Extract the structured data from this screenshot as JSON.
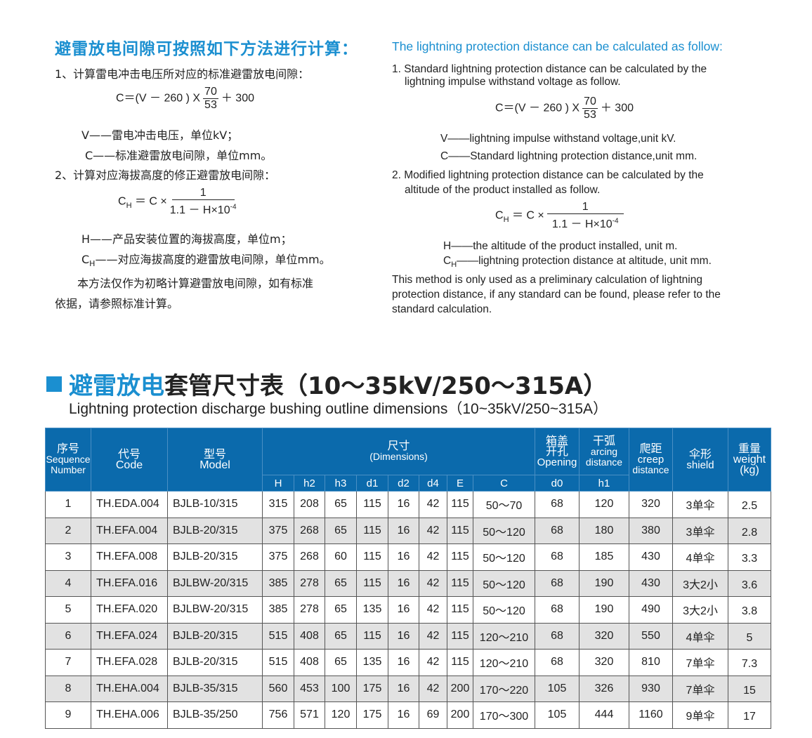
{
  "cn": {
    "title": "避雷放电间隙可按照如下方法进行计算：",
    "step1": "1、计算雷电冲击电压所对应的标准避雷放电间隙：",
    "f1": {
      "lhs": "C＝(V  － 260 ) X",
      "num": "70",
      "den": "53",
      "tail": "＋ 300"
    },
    "v_def": "V——雷电冲击电压，单位kV；",
    "c_def": "C——标准避雷放电间隙，单位mm。",
    "step2": "2、计算对应海拔高度的修正避雷放电间隙：",
    "f2": {
      "c": "C",
      "sub": "H",
      "mid": "＝ C ×",
      "num": "1",
      "den": "1.1 － H×10",
      "exp": "-4"
    },
    "h_def": "H——产品安装位置的海拔高度，单位m；",
    "ch_def": "——对应海拔高度的避雷放电间隙，单位mm。",
    "note1": "本方法仅作为初略计算避雷放电间隙，如有标准",
    "note2": "依据，请参照标准计算。"
  },
  "en": {
    "title": "The lightning protection distance can be calculated as follow:",
    "step1a": "1. Standard lightning protection distance can be calculated by the",
    "step1b": "lightning impulse withstand voltage as follow.",
    "v_def": "V——lightning impulse withstand voltage,unit kV.",
    "c_def": "C——Standard lightning protection distance,unit mm.",
    "step2a": "2. Modified lightning protection distance can be calculated by the",
    "step2b": "altitude of the product installed as follow.",
    "h_def": "H——the altitude of the product installed, unit m.",
    "ch_def": "——lightning protection distance at altitude, unit mm.",
    "note1": "This method is only used as a preliminary calculation of lightning",
    "note2": "protection distance, if any standard can be found, please refer to the",
    "note3": "standard calculation."
  },
  "section": {
    "cn_blue": "避雷放电",
    "cn_rest": "套管尺寸表（10～35kV/250～315A）",
    "en": "Lightning protection discharge bushing outline dimensions（10~35kV/250~315A）"
  },
  "table": {
    "h": {
      "seq": [
        "序号",
        "Sequence",
        "Number"
      ],
      "code": [
        "代号",
        "Code"
      ],
      "model": [
        "型号",
        "Model"
      ],
      "dim": [
        "尺寸",
        "(Dimensions)"
      ],
      "opening": [
        "箱盖",
        "开孔",
        "Opening"
      ],
      "arcing": [
        "干弧",
        "arcing",
        "distance"
      ],
      "creep": [
        "爬距",
        "creep",
        "distance"
      ],
      "shield": [
        "伞形",
        "shield"
      ],
      "weight": [
        "重量",
        "weight",
        "(kg)"
      ],
      "sub": [
        "H",
        "h2",
        "h3",
        "d1",
        "d2",
        "d4",
        "E",
        "C",
        "d0",
        "h1"
      ]
    },
    "rows": [
      [
        "1",
        "TH.EDA.004",
        "BJLB-10/315",
        "315",
        "208",
        "65",
        "115",
        "16",
        "42",
        "115",
        "50～70",
        "68",
        "120",
        "320",
        "3单伞",
        "2.5"
      ],
      [
        "2",
        "TH.EFA.004",
        "BJLB-20/315",
        "375",
        "268",
        "65",
        "115",
        "16",
        "42",
        "115",
        "50～120",
        "68",
        "180",
        "380",
        "3单伞",
        "2.8"
      ],
      [
        "3",
        "TH.EFA.008",
        "BJLB-20/315",
        "375",
        "268",
        "60",
        "115",
        "16",
        "42",
        "115",
        "50～120",
        "68",
        "185",
        "430",
        "4单伞",
        "3.3"
      ],
      [
        "4",
        "TH.EFA.016",
        "BJLBW-20/315",
        "385",
        "278",
        "65",
        "115",
        "16",
        "42",
        "115",
        "50～120",
        "68",
        "190",
        "430",
        "3大2小",
        "3.6"
      ],
      [
        "5",
        "TH.EFA.020",
        "BJLBW-20/315",
        "385",
        "278",
        "65",
        "135",
        "16",
        "42",
        "115",
        "50～120",
        "68",
        "190",
        "490",
        "3大2小",
        "3.8"
      ],
      [
        "6",
        "TH.EFA.024",
        "BJLB-20/315",
        "515",
        "408",
        "65",
        "115",
        "16",
        "42",
        "115",
        "120～210",
        "68",
        "320",
        "550",
        "4单伞",
        "5"
      ],
      [
        "7",
        "TH.EFA.028",
        "BJLB-20/315",
        "515",
        "408",
        "65",
        "135",
        "16",
        "42",
        "115",
        "120～210",
        "68",
        "320",
        "810",
        "7单伞",
        "7.3"
      ],
      [
        "8",
        "TH.EHA.004",
        "BJLB-35/315",
        "560",
        "453",
        "100",
        "175",
        "16",
        "42",
        "200",
        "170～220",
        "105",
        "326",
        "930",
        "7单伞",
        "15"
      ],
      [
        "9",
        "TH.EHA.006",
        "BJLB-35/250",
        "756",
        "571",
        "120",
        "175",
        "16",
        "69",
        "200",
        "170～300",
        "105",
        "444",
        "1160",
        "9单伞",
        "17"
      ]
    ]
  }
}
